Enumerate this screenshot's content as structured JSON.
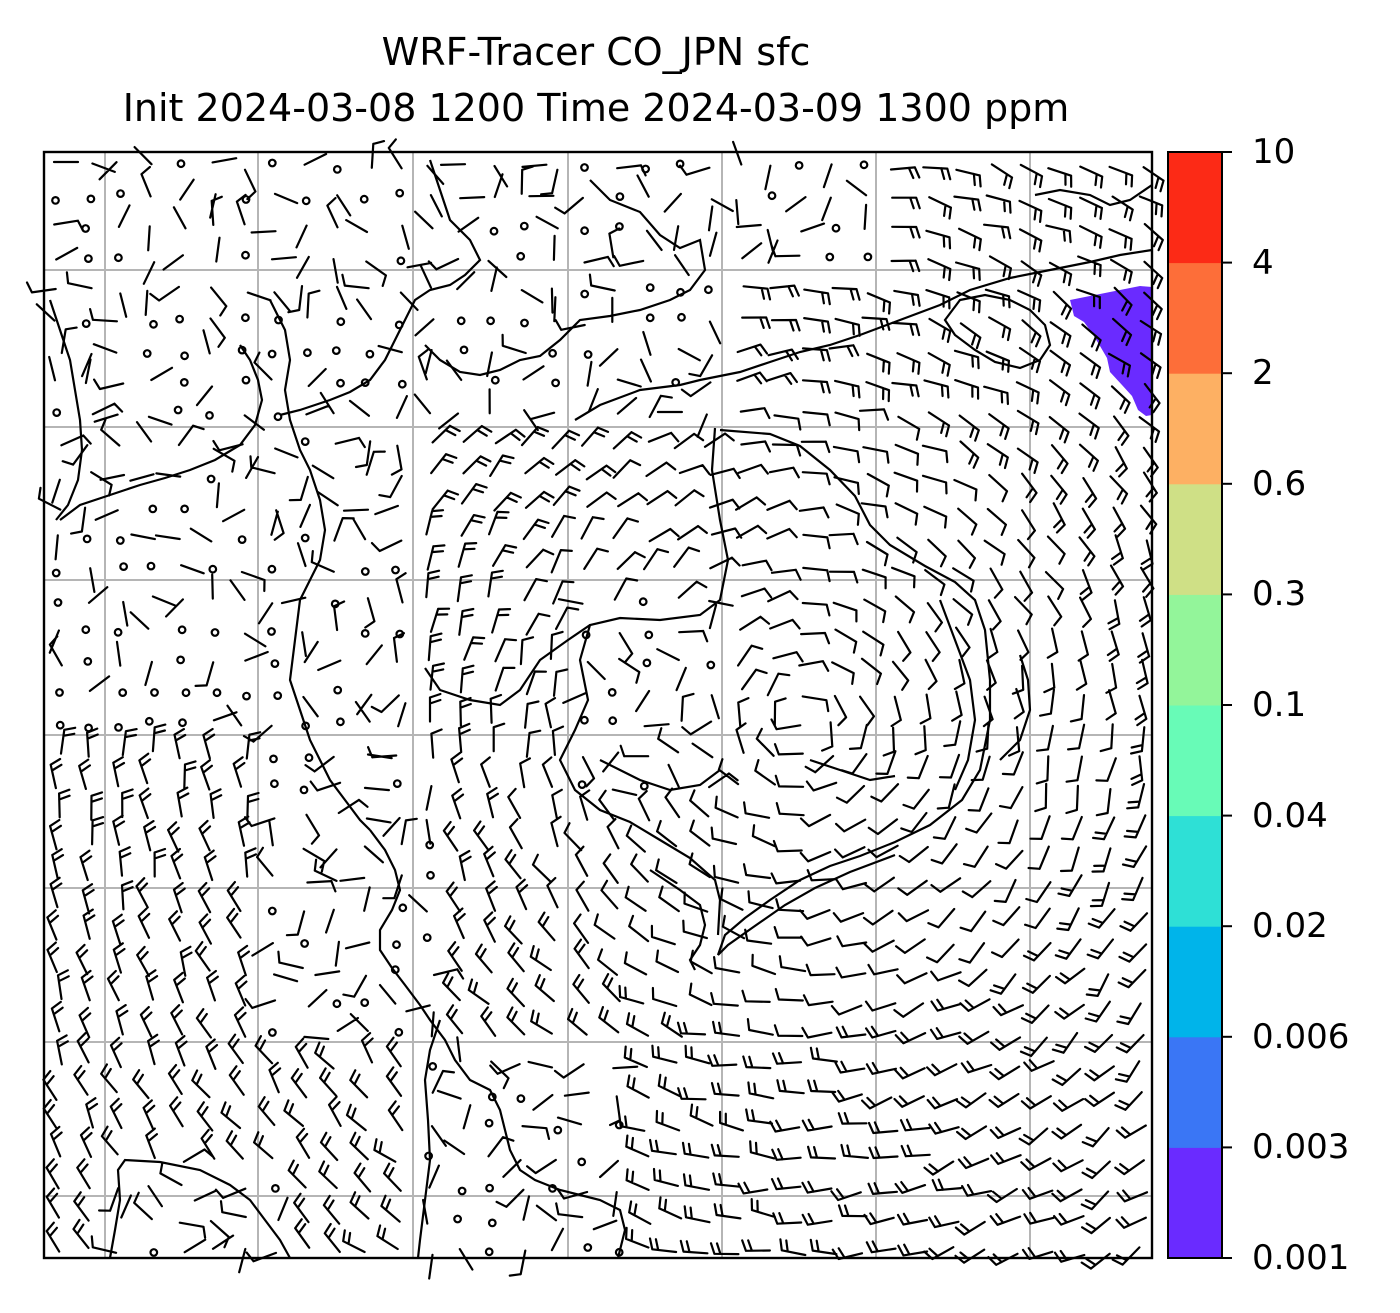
{
  "title": {
    "line1": "WRF-Tracer CO_JPN sfc",
    "line2": "Init 2024-03-08 1200 Time 2024-03-09 1300 ppm"
  },
  "colorbar": {
    "levels": [
      "0.001",
      "0.003",
      "0.006",
      "0.02",
      "0.04",
      "0.1",
      "0.3",
      "0.6",
      "2",
      "4",
      "10"
    ],
    "colors": [
      "#6a2bff",
      "#3a76f5",
      "#00b4ea",
      "#2ee0d6",
      "#68fbb7",
      "#93f59a",
      "#cfe086",
      "#fdb063",
      "#fd6e39",
      "#fc2a16"
    ]
  },
  "map": {
    "frame_color": "#000000",
    "grid_color": "#b5b5b5",
    "tracer_patch_color": "#6a2bff",
    "tracer_patch_level": "0.001-0.003 ppm",
    "wind_barbs": "dense regular grid with calm circles over land, cyclonic flow over ocean"
  }
}
